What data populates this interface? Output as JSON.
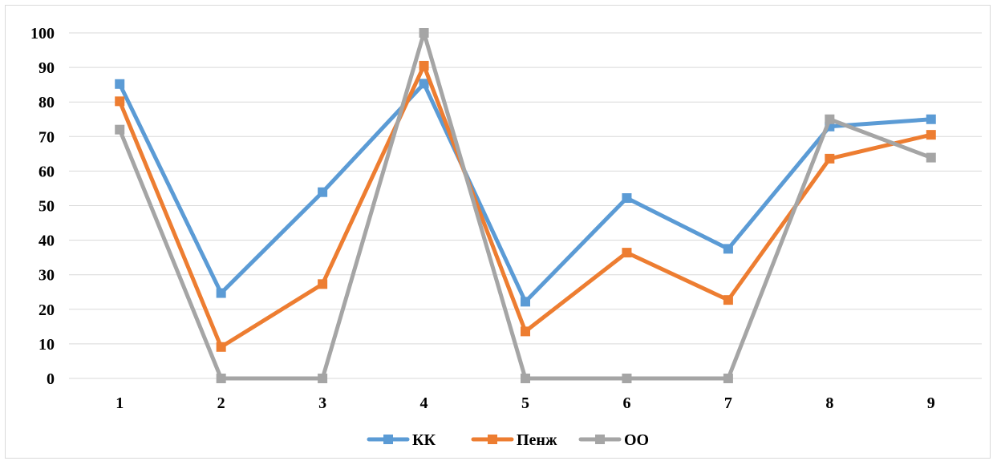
{
  "chart_data": {
    "type": "line",
    "categories": [
      "1",
      "2",
      "3",
      "4",
      "5",
      "6",
      "7",
      "8",
      "9"
    ],
    "ylim": [
      0,
      100
    ],
    "yticks": [
      0,
      10,
      20,
      30,
      40,
      50,
      60,
      70,
      80,
      90,
      100
    ],
    "grid": true,
    "legend_position": "bottom",
    "marker": "square",
    "series": [
      {
        "name": "КК",
        "color": "#5B9BD5",
        "values": [
          85.2,
          24.7,
          53.9,
          85.3,
          22.2,
          52.2,
          37.5,
          72.9,
          75.0
        ]
      },
      {
        "name": "Пенж",
        "color": "#ED7D31",
        "values": [
          80.2,
          9.1,
          27.3,
          90.5,
          13.6,
          36.4,
          22.7,
          63.6,
          70.5
        ]
      },
      {
        "name": "ОО",
        "color": "#A5A5A5",
        "values": [
          72.0,
          0,
          0,
          100,
          0,
          0,
          0,
          75.0,
          63.9
        ]
      }
    ]
  }
}
